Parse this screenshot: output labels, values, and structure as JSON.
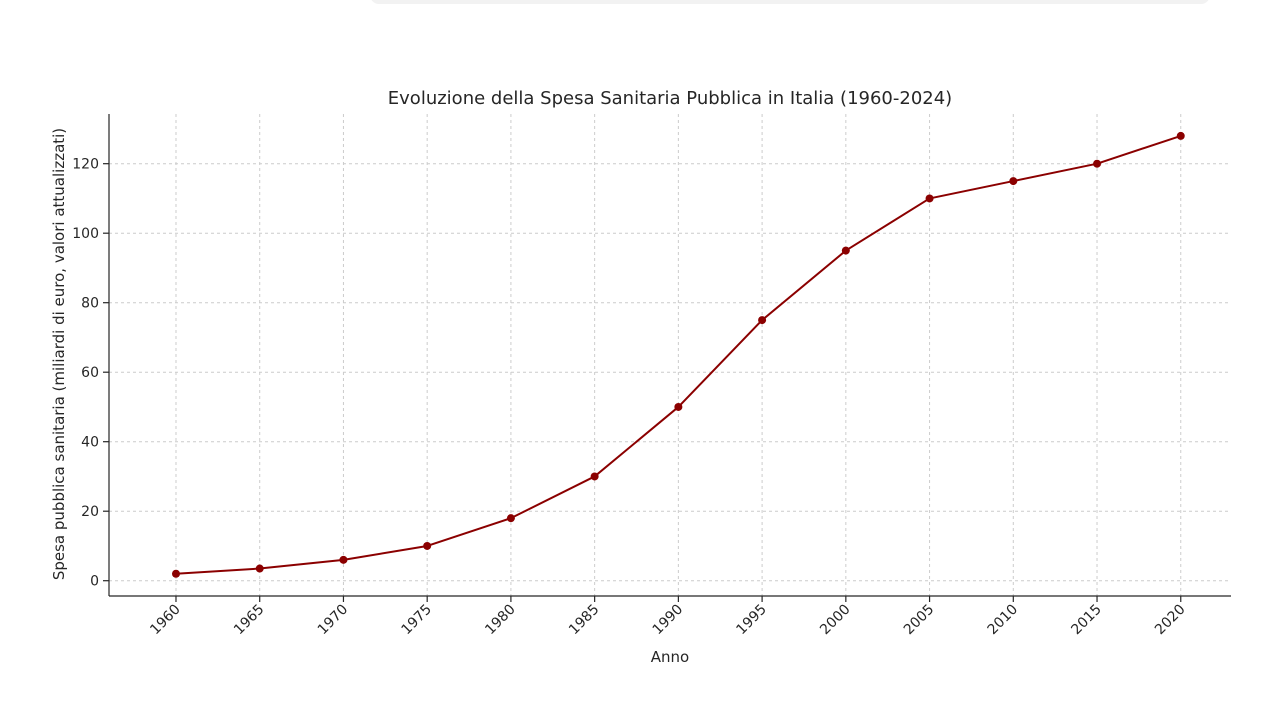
{
  "chart_data": {
    "type": "line",
    "title": "Evoluzione della Spesa Sanitaria Pubblica in Italia (1960-2024)",
    "xlabel": "Anno",
    "ylabel": "Spesa pubblica sanitaria (miliardi di euro, valori attualizzati)",
    "x": [
      1960,
      1965,
      1970,
      1975,
      1980,
      1985,
      1990,
      1995,
      2000,
      2005,
      2010,
      2015,
      2020
    ],
    "series": [
      {
        "values": [
          2,
          3.5,
          6,
          10,
          18,
          30,
          50,
          75,
          95,
          110,
          115,
          120,
          128
        ],
        "color": "#8b0000"
      }
    ],
    "x_tick_labels": [
      "1960",
      "1965",
      "1970",
      "1975",
      "1980",
      "1985",
      "1990",
      "1995",
      "2000",
      "2005",
      "2010",
      "2015",
      "2020"
    ],
    "y_ticks": [
      0,
      20,
      40,
      60,
      80,
      100,
      120
    ],
    "xlim": [
      1956,
      2023
    ],
    "ylim": [
      -4.4,
      134.3
    ],
    "grid": true,
    "marker": "circle"
  }
}
